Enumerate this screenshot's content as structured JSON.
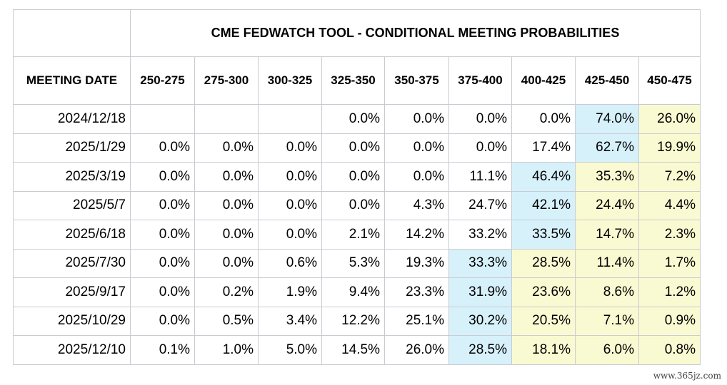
{
  "chart_data": {
    "type": "table",
    "title": "CME FEDWATCH TOOL - CONDITIONAL MEETING PROBABILITIES",
    "row_header_label": "MEETING DATE",
    "columns": [
      "250-275",
      "275-300",
      "300-325",
      "325-350",
      "350-375",
      "375-400",
      "400-425",
      "425-450",
      "450-475"
    ],
    "rows": [
      {
        "date": "2024/12/18",
        "values": [
          "",
          "",
          "",
          "0.0%",
          "0.0%",
          "0.0%",
          "0.0%",
          "74.0%",
          "26.0%"
        ],
        "highlight_blue": 7,
        "highlight_yellow_from": 8
      },
      {
        "date": "2025/1/29",
        "values": [
          "0.0%",
          "0.0%",
          "0.0%",
          "0.0%",
          "0.0%",
          "0.0%",
          "17.4%",
          "62.7%",
          "19.9%"
        ],
        "highlight_blue": 7,
        "highlight_yellow_from": 8
      },
      {
        "date": "2025/3/19",
        "values": [
          "0.0%",
          "0.0%",
          "0.0%",
          "0.0%",
          "0.0%",
          "11.1%",
          "46.4%",
          "35.3%",
          "7.2%"
        ],
        "highlight_blue": 6,
        "highlight_yellow_from": 7
      },
      {
        "date": "2025/5/7",
        "values": [
          "0.0%",
          "0.0%",
          "0.0%",
          "0.0%",
          "4.3%",
          "24.7%",
          "42.1%",
          "24.4%",
          "4.4%"
        ],
        "highlight_blue": 6,
        "highlight_yellow_from": 7
      },
      {
        "date": "2025/6/18",
        "values": [
          "0.0%",
          "0.0%",
          "0.0%",
          "2.1%",
          "14.2%",
          "33.2%",
          "33.5%",
          "14.7%",
          "2.3%"
        ],
        "highlight_blue": 6,
        "highlight_yellow_from": 7
      },
      {
        "date": "2025/7/30",
        "values": [
          "0.0%",
          "0.0%",
          "0.6%",
          "5.3%",
          "19.3%",
          "33.3%",
          "28.5%",
          "11.4%",
          "1.7%"
        ],
        "highlight_blue": 5,
        "highlight_yellow_from": 6
      },
      {
        "date": "2025/9/17",
        "values": [
          "0.0%",
          "0.2%",
          "1.9%",
          "9.4%",
          "23.3%",
          "31.9%",
          "23.6%",
          "8.6%",
          "1.2%"
        ],
        "highlight_blue": 5,
        "highlight_yellow_from": 6
      },
      {
        "date": "2025/10/29",
        "values": [
          "0.0%",
          "0.5%",
          "3.4%",
          "12.2%",
          "25.1%",
          "30.2%",
          "20.5%",
          "7.1%",
          "0.9%"
        ],
        "highlight_blue": 5,
        "highlight_yellow_from": 6
      },
      {
        "date": "2025/12/10",
        "values": [
          "0.1%",
          "1.0%",
          "5.0%",
          "14.5%",
          "26.0%",
          "28.5%",
          "18.1%",
          "6.0%",
          "0.8%"
        ],
        "highlight_blue": 5,
        "highlight_yellow_from": 6
      }
    ]
  },
  "colors": {
    "highlight_blue": "#d7f1fb",
    "highlight_yellow": "#fafad2",
    "border": "#c8ccd2"
  },
  "watermark": "www.365jz.com"
}
